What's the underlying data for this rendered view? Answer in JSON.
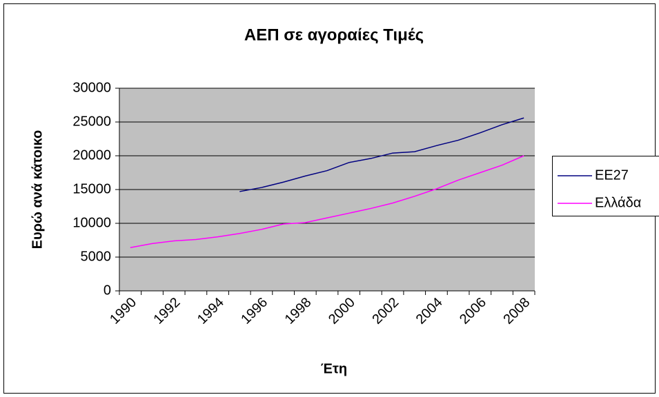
{
  "chart_data": {
    "type": "line",
    "title": "ΑΕΠ σε αγοραίες Τιμές",
    "x_label": "Έτη",
    "y_label": "Ευρώ ανά κάτοικο",
    "categories": [
      "1990",
      null,
      "1992",
      null,
      "1994",
      null,
      "1996",
      null,
      "1998",
      null,
      "2000",
      null,
      "2002",
      null,
      "2004",
      null,
      "2006",
      null,
      "2008"
    ],
    "series": [
      {
        "name": "ΕΕ27",
        "color": "#000080",
        "values": [
          null,
          null,
          null,
          null,
          null,
          14700,
          15300,
          16100,
          17000,
          17800,
          19000,
          19600,
          20400,
          20600,
          21500,
          22300,
          23400,
          24600,
          25600
        ]
      },
      {
        "name": "Ελλάδα",
        "color": "#ff00ff",
        "values": [
          6400,
          7000,
          7400,
          7600,
          8000,
          8500,
          9100,
          9900,
          10100,
          10800,
          11500,
          12200,
          13000,
          14000,
          15100,
          16400,
          17500,
          18600,
          20000
        ]
      }
    ],
    "ylim": [
      0,
      30000
    ],
    "yticks": [
      0,
      5000,
      10000,
      15000,
      20000,
      25000,
      30000
    ],
    "grid": true,
    "legend": "right"
  }
}
